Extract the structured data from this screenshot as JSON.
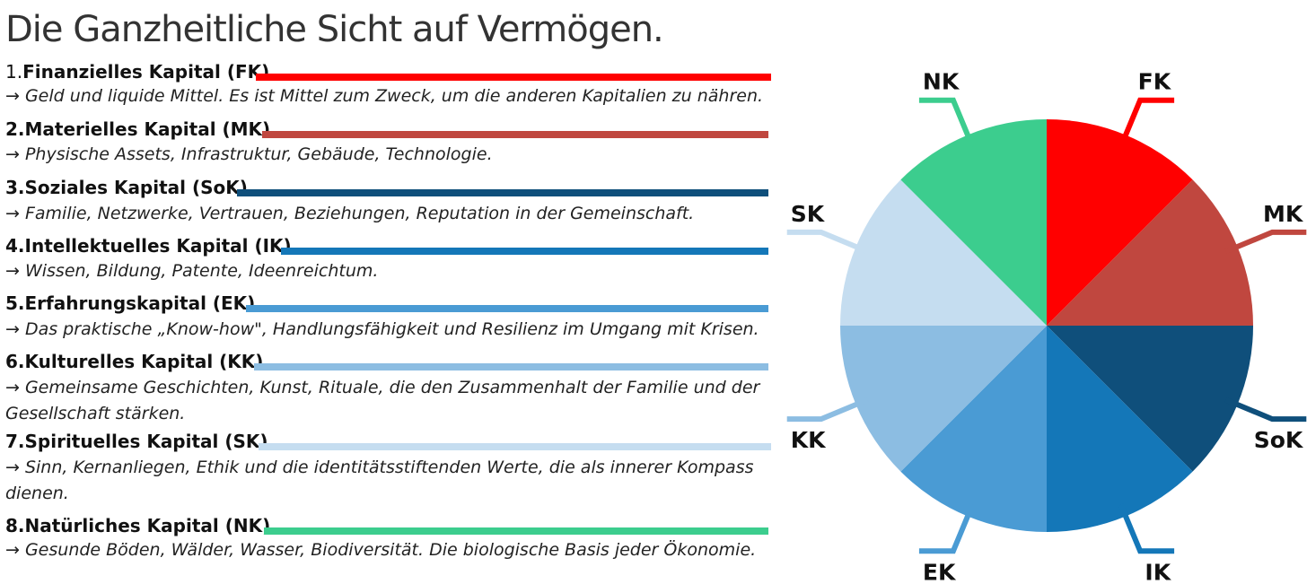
{
  "title": "Die Ganzheitliche Sicht auf Vermögen.",
  "items": [
    {
      "num": "1.",
      "name": "Finanzielles Kapital (FK)",
      "desc": "→ Geld und liquide Mittel. Es ist Mittel zum Zweck, um die anderen Kapitalien zu nähren.",
      "color": "#ff0000"
    },
    {
      "num": "2.",
      "name": "Materielles Kapital (MK)",
      "desc": "→ Physische Assets, Infrastruktur, Gebäude, Technologie.",
      "color": "#c0473f"
    },
    {
      "num": "3.",
      "name": "Soziales Kapital (SoK)",
      "desc": "→ Familie, Netzwerke, Vertrauen, Beziehungen, Reputation in der Gemeinschaft.",
      "color": "#0f4f7b"
    },
    {
      "num": "4.",
      "name": "Intellektuelles Kapital (IK)",
      "desc": "→ Wissen, Bildung, Patente, Ideenreichtum.",
      "color": "#1477b8"
    },
    {
      "num": "5.",
      "name": "Erfahrungskapital (EK)",
      "desc": "→ Das praktische „Know-how\", Handlungsfähigkeit und Resilienz im Umgang mit Krisen.",
      "color": "#4a9bd4"
    },
    {
      "num": "6.",
      "name": "Kulturelles Kapital (KK)",
      "desc": "→ Gemeinsame Geschichten, Kunst, Rituale, die den Zusammenhalt der Familie und der Gesellschaft stärken.",
      "color": "#8cbde2"
    },
    {
      "num": "7.",
      "name": "Spirituelles Kapital (SK)",
      "desc": "→ Sinn, Kernanliegen, Ethik und die identitätsstiftenden Werte, die als innerer Kompass dienen.",
      "color": "#c5ddf0"
    },
    {
      "num": "8.",
      "name": "Natürliches Kapital (NK)",
      "desc": "→ Gesunde Böden, Wälder, Wasser, Biodiversität. Die biologische Basis jeder Ökonomie.",
      "color": "#3ccd8e"
    }
  ],
  "chart_data": {
    "type": "pie",
    "categories": [
      "FK",
      "MK",
      "SoK",
      "IK",
      "EK",
      "KK",
      "SK",
      "NK"
    ],
    "values": [
      1,
      1,
      1,
      1,
      1,
      1,
      1,
      1
    ],
    "colors": [
      "#ff0000",
      "#c0473f",
      "#0f4f7b",
      "#1477b8",
      "#4a9bd4",
      "#8cbde2",
      "#c5ddf0",
      "#3ccd8e"
    ],
    "start": "12 o'clock",
    "direction": "clockwise",
    "legend": "none"
  }
}
